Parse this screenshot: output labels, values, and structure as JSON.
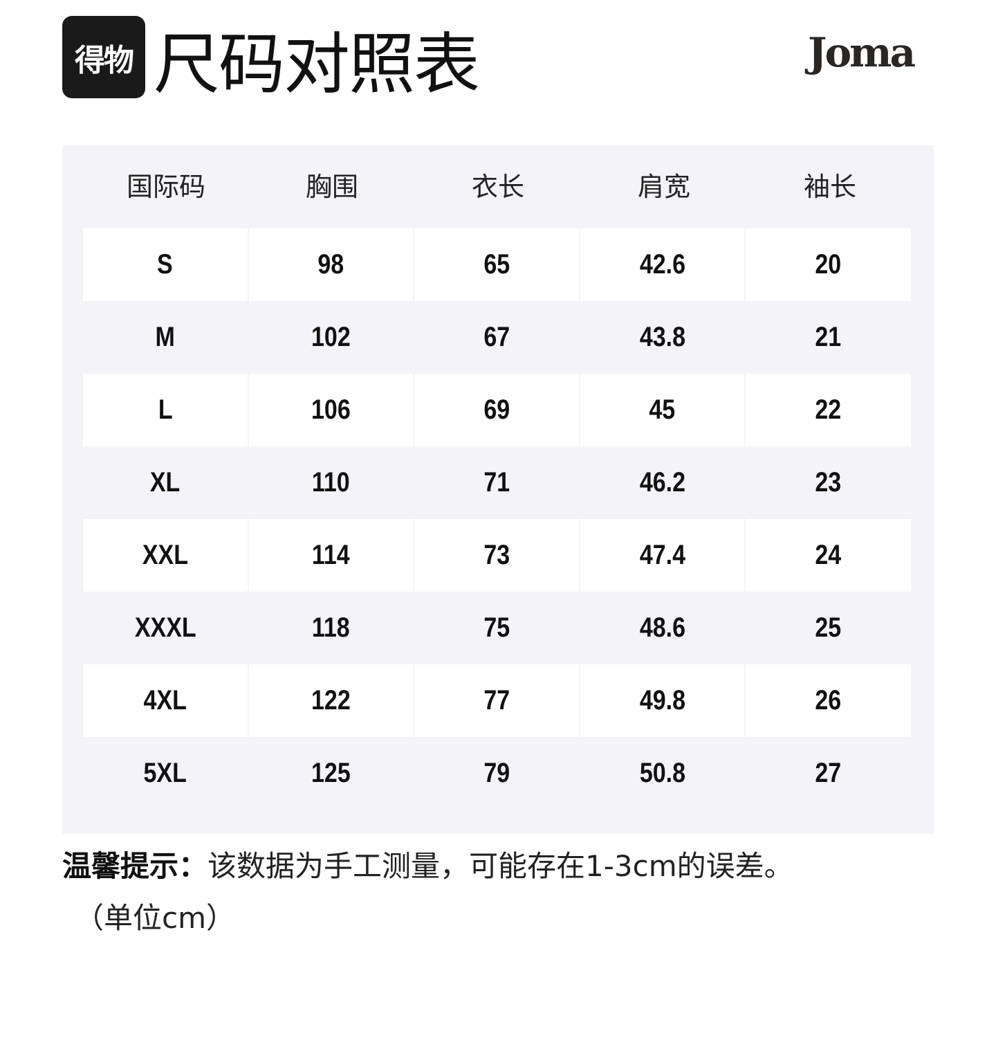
{
  "header": {
    "logo_text": "得物",
    "title": "尺码对照表",
    "brand": "Joma"
  },
  "table": {
    "columns": [
      "国际码",
      "胸围",
      "衣长",
      "肩宽",
      "袖长"
    ],
    "rows": [
      [
        "S",
        "98",
        "65",
        "42.6",
        "20"
      ],
      [
        "M",
        "102",
        "67",
        "43.8",
        "21"
      ],
      [
        "L",
        "106",
        "69",
        "45",
        "22"
      ],
      [
        "XL",
        "110",
        "71",
        "46.2",
        "23"
      ],
      [
        "XXL",
        "114",
        "73",
        "47.4",
        "24"
      ],
      [
        "XXXL",
        "118",
        "75",
        "48.6",
        "25"
      ],
      [
        "4XL",
        "122",
        "77",
        "49.8",
        "26"
      ],
      [
        "5XL",
        "125",
        "79",
        "50.8",
        "27"
      ]
    ]
  },
  "footer": {
    "note_label": "温馨提示：",
    "note_text": "该数据为手工测量，可能存在1-3cm的误差。",
    "unit": "（单位cm）"
  }
}
